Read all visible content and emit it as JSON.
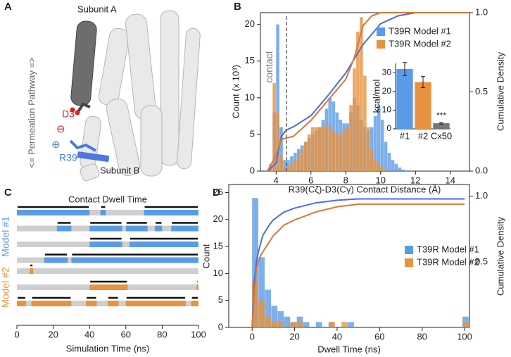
{
  "structure": {
    "label": "A",
    "subunit_a": "Subunit A",
    "subunit_b": "Subunit B",
    "pathway": "<= Permeation Pathway =>",
    "residue_1": "D3",
    "residue_2": "R39",
    "charge_1": "⊖",
    "charge_2": "⊕"
  },
  "chart_data": [
    {
      "type": "histogram",
      "label": "B",
      "xlabel": "R39(Cζ)-D3(Cγ) Contact Distance (Å)",
      "ylabel": "Count (x 10³)",
      "y2label": "Cumulative Density",
      "bins": [
        3.4,
        3.6,
        3.8,
        4,
        4.2,
        4.4,
        4.6,
        4.8,
        5,
        5.2,
        5.4,
        5.6,
        5.8,
        6,
        6.2,
        6.4,
        6.6,
        6.8,
        7,
        7.2,
        7.4,
        7.6,
        7.8,
        8,
        8.2,
        8.4,
        8.6,
        8.8,
        9,
        9.2,
        9.4,
        9.6,
        9.8,
        10,
        10.2,
        10.4,
        10.6,
        10.8,
        11,
        11.2,
        11.4
      ],
      "series": [
        {
          "name": "T39R Model #1",
          "color": "#5b9be6",
          "values": [
            0,
            0.5,
            8,
            20,
            6,
            1.5,
            1.5,
            2,
            2.5,
            3,
            3.5,
            4,
            4.5,
            5,
            5.5,
            6,
            7,
            8.5,
            10,
            9.5,
            8,
            7,
            6.5,
            6.5,
            8,
            10,
            9,
            7,
            6,
            5.5,
            6,
            7.5,
            9,
            7,
            4,
            2.5,
            1.5,
            1,
            0.5,
            0.2
          ]
        },
        {
          "name": "T39R Model #2",
          "color": "#e8923f",
          "values": [
            0,
            1,
            12,
            8,
            2,
            0.5,
            0.5,
            1,
            1.5,
            2,
            3,
            4,
            5,
            6,
            6,
            6,
            6,
            6.5,
            6,
            5.5,
            5,
            5,
            5.5,
            6,
            9,
            14,
            19,
            21,
            13,
            6,
            3,
            1.5,
            1,
            0.5,
            0.2,
            0,
            0,
            0,
            0,
            0
          ]
        }
      ],
      "cumulative": [
        {
          "color": "#4a6ee0",
          "x": [
            3.5,
            4,
            4.3,
            4.6,
            5,
            6,
            7,
            8,
            9,
            10,
            11,
            12,
            15
          ],
          "values": [
            0,
            0.05,
            0.22,
            0.26,
            0.28,
            0.35,
            0.48,
            0.62,
            0.8,
            0.93,
            0.98,
            1,
            1
          ]
        },
        {
          "color": "#d9773a",
          "x": [
            3.5,
            4,
            4.3,
            5,
            6,
            7,
            8,
            8.5,
            9,
            9.5,
            10,
            15
          ],
          "values": [
            0,
            0.1,
            0.2,
            0.22,
            0.32,
            0.45,
            0.58,
            0.72,
            0.92,
            0.98,
            1,
            1
          ]
        }
      ],
      "threshold": 4.6,
      "annotation": "contact",
      "xlim": [
        3.1,
        15.1
      ],
      "xticks": [
        4,
        6,
        8,
        10,
        12,
        14
      ],
      "ylim": [
        0,
        21.6
      ],
      "yticks": [
        0,
        5,
        10,
        15,
        20
      ],
      "y2lim": [
        0,
        1
      ],
      "y2ticks": [
        {
          "value": 0,
          "label": "0.0"
        },
        {
          "value": 0.5,
          "label": "0.5"
        },
        {
          "value": 1,
          "label": "1.0"
        }
      ],
      "legend": "upper right"
    },
    {
      "type": "bar",
      "ylabel": "kcal/mol",
      "categories": [
        "#1",
        "#2",
        "Cx50"
      ],
      "values": [
        32,
        25,
        3
      ],
      "errors": [
        3.5,
        3,
        0.5
      ],
      "colors": [
        "#5b9be6",
        "#e8923f",
        "#777777"
      ],
      "ylim": [
        0,
        35
      ],
      "yticks": [
        0,
        10,
        20,
        30
      ],
      "annotation": "***"
    },
    {
      "type": "raster",
      "label": "C",
      "title": "Contact Dwell Time",
      "xlabel": "Simulation Time (ns)",
      "xlim": [
        0,
        100
      ],
      "xticks": [
        0,
        20,
        40,
        60,
        80,
        100
      ],
      "groups": [
        {
          "name": "Model #1",
          "color": "#5b9be6",
          "rows": [
            [
              [
                0,
                40
              ],
              [
                46,
                49
              ],
              [
                70,
                100
              ]
            ],
            [
              [
                22,
                30
              ],
              [
                40,
                58
              ],
              [
                60,
                72
              ],
              [
                76,
                80
              ],
              [
                85,
                100
              ]
            ],
            [
              [
                40,
                58
              ],
              [
                62,
                100
              ]
            ],
            [
              [
                15,
                28
              ],
              [
                30,
                100
              ]
            ]
          ]
        },
        {
          "name": "Model #2",
          "color": "#e8923f",
          "rows": [
            [
              [
                7,
                9
              ]
            ],
            [
              [
                40,
                61
              ],
              [
                99,
                100
              ]
            ],
            [
              [
                0,
                5
              ],
              [
                8,
                30
              ],
              [
                38,
                44
              ],
              [
                50,
                56
              ],
              [
                60,
                93
              ],
              [
                96,
                100
              ]
            ]
          ]
        }
      ]
    },
    {
      "type": "histogram",
      "label": "D",
      "xlabel": "Dwell Time (ns)",
      "ylabel": "Count",
      "y2label": "Cumulative Density",
      "bins": [
        0,
        3,
        6,
        9,
        12,
        15,
        18,
        21,
        24,
        27,
        30,
        33,
        36,
        39,
        42,
        45,
        48,
        51,
        54,
        57,
        60,
        63,
        66,
        69,
        72,
        75,
        78,
        81,
        84,
        87,
        90,
        93,
        96,
        99,
        102
      ],
      "series": [
        {
          "name": "T39R Model #1",
          "color": "#5b9be6",
          "values": [
            24,
            13,
            7,
            4,
            3,
            2,
            1,
            2,
            1,
            0,
            1,
            0,
            1,
            0,
            0,
            1,
            0,
            0,
            0,
            0,
            0,
            0,
            0,
            0,
            0,
            0,
            0,
            0,
            0,
            0,
            0,
            0,
            0,
            2
          ]
        },
        {
          "name": "T39R Model #2",
          "color": "#e8923f",
          "values": [
            9,
            5,
            2,
            1,
            1,
            0,
            1,
            1,
            0,
            0,
            0,
            0,
            1,
            0,
            1,
            0,
            0,
            0,
            0,
            0,
            0,
            0,
            0,
            0,
            0,
            0,
            0,
            0,
            0,
            0,
            0,
            0,
            0,
            1
          ]
        }
      ],
      "cumulative": [
        {
          "color": "#4a6ee0",
          "x": [
            0,
            1,
            2,
            3,
            5,
            8,
            10,
            15,
            20,
            30,
            40,
            50,
            100
          ],
          "values": [
            0,
            0.35,
            0.5,
            0.58,
            0.7,
            0.78,
            0.82,
            0.88,
            0.91,
            0.95,
            0.97,
            0.98,
            0.98
          ]
        },
        {
          "color": "#d9773a",
          "x": [
            0,
            1,
            2,
            4,
            6,
            10,
            15,
            20,
            30,
            40,
            50,
            100
          ],
          "values": [
            0,
            0.25,
            0.45,
            0.55,
            0.6,
            0.7,
            0.78,
            0.82,
            0.88,
            0.92,
            0.94,
            0.94
          ]
        }
      ],
      "xlim": [
        -11,
        102.3
      ],
      "xticks": [
        0,
        20,
        40,
        60,
        80,
        100
      ],
      "ylim": [
        0,
        26.5
      ],
      "yticks": [
        0,
        5,
        10,
        15,
        20,
        25
      ],
      "y2lim": [
        0,
        1.09
      ],
      "y2ticks": [
        {
          "value": 0.5,
          "label": "0.5"
        },
        {
          "value": 1,
          "label": "1.0"
        }
      ],
      "legend": "center right"
    }
  ]
}
